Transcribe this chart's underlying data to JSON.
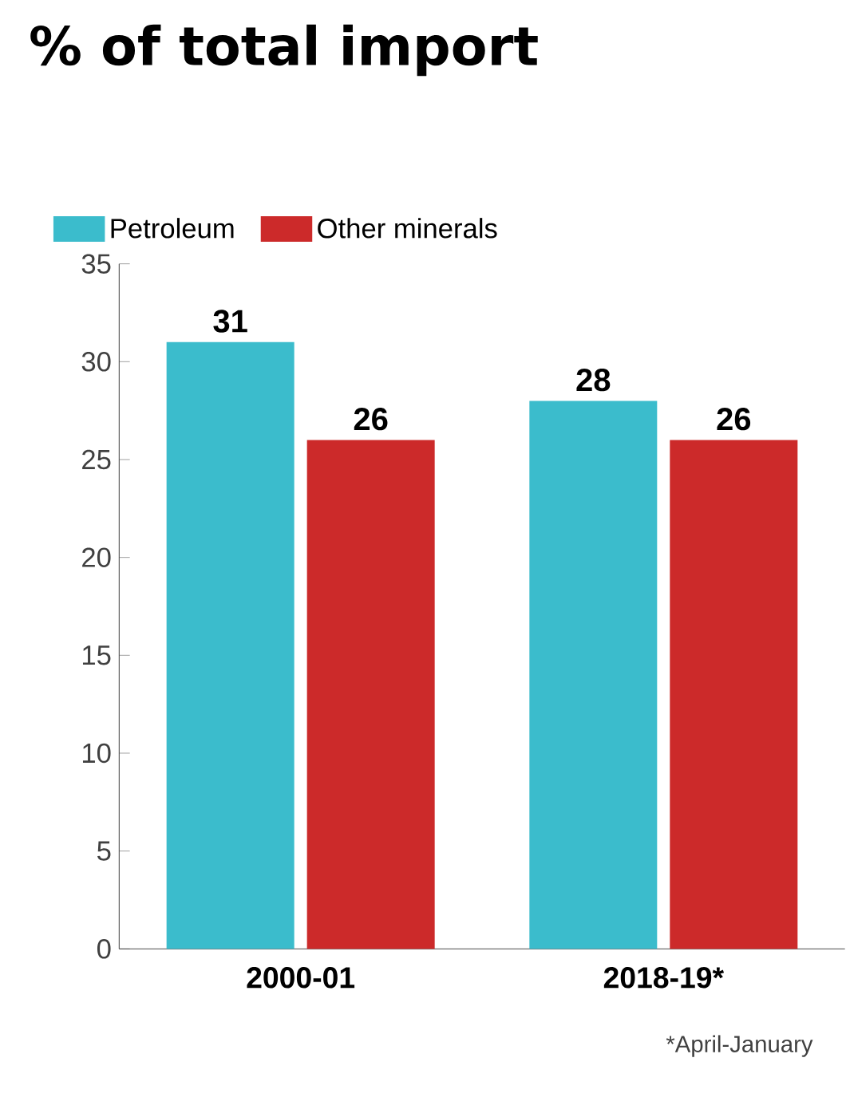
{
  "chart_data": {
    "type": "bar",
    "title": "% of total import",
    "categories": [
      "2000-01",
      "2018-19*"
    ],
    "series": [
      {
        "name": "Petroleum",
        "color": "#3bbccc",
        "values": [
          31,
          28
        ]
      },
      {
        "name": "Other minerals",
        "color": "#cc2a2a",
        "values": [
          26,
          26
        ]
      }
    ],
    "ylim": [
      0,
      35
    ],
    "yticks": [
      0,
      5,
      10,
      15,
      20,
      25,
      30,
      35
    ],
    "data_labels": true,
    "legend": "top left",
    "grid": false,
    "annotations": [
      "*April-January"
    ]
  }
}
